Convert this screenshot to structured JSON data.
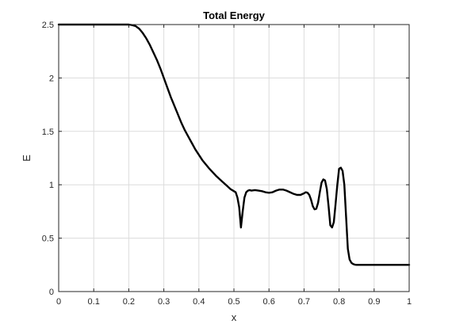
{
  "chart_data": {
    "type": "line",
    "title": "Total Energy",
    "xlabel": "x",
    "ylabel": "E",
    "xlim": [
      0,
      1
    ],
    "ylim": [
      0,
      2.5
    ],
    "xticks": [
      0,
      0.1,
      0.2,
      0.3,
      0.4,
      0.5,
      0.6,
      0.7,
      0.8,
      0.9,
      1
    ],
    "xtick_labels": [
      "0",
      "0.1",
      "0.2",
      "0.3",
      "0.4",
      "0.5",
      "0.6",
      "0.7",
      "0.8",
      "0.9",
      "1"
    ],
    "yticks": [
      0,
      0.5,
      1,
      1.5,
      2,
      2.5
    ],
    "ytick_labels": [
      "0",
      "0.5",
      "1",
      "1.5",
      "2",
      "2.5"
    ],
    "grid": true,
    "line_color": "#000000",
    "series": [
      {
        "x": [
          0,
          0.05,
          0.1,
          0.15,
          0.2,
          0.21,
          0.22,
          0.23,
          0.24,
          0.25,
          0.26,
          0.27,
          0.28,
          0.29,
          0.3,
          0.31,
          0.32,
          0.33,
          0.34,
          0.35,
          0.36,
          0.37,
          0.38,
          0.39,
          0.4,
          0.41,
          0.42,
          0.43,
          0.44,
          0.45,
          0.46,
          0.47,
          0.48,
          0.49,
          0.5,
          0.505,
          0.51,
          0.515,
          0.52,
          0.525,
          0.53,
          0.535,
          0.54,
          0.545,
          0.55,
          0.56,
          0.57,
          0.58,
          0.59,
          0.6,
          0.61,
          0.62,
          0.63,
          0.64,
          0.65,
          0.66,
          0.67,
          0.68,
          0.69,
          0.7,
          0.705,
          0.71,
          0.715,
          0.72,
          0.725,
          0.73,
          0.735,
          0.74,
          0.745,
          0.75,
          0.755,
          0.76,
          0.765,
          0.77,
          0.775,
          0.78,
          0.785,
          0.79,
          0.795,
          0.8,
          0.805,
          0.81,
          0.815,
          0.82,
          0.825,
          0.83,
          0.835,
          0.84,
          0.845,
          0.85,
          0.855,
          0.86,
          0.865,
          0.87,
          0.875,
          0.88,
          0.89,
          0.9,
          0.95,
          1
        ],
        "y": [
          2.5,
          2.5,
          2.5,
          2.5,
          2.5,
          2.495,
          2.485,
          2.46,
          2.42,
          2.37,
          2.31,
          2.24,
          2.17,
          2.09,
          2.0,
          1.91,
          1.82,
          1.74,
          1.66,
          1.58,
          1.51,
          1.45,
          1.39,
          1.33,
          1.28,
          1.23,
          1.19,
          1.15,
          1.115,
          1.08,
          1.05,
          1.02,
          0.99,
          0.96,
          0.94,
          0.93,
          0.88,
          0.79,
          0.6,
          0.75,
          0.88,
          0.93,
          0.945,
          0.95,
          0.945,
          0.95,
          0.945,
          0.94,
          0.93,
          0.925,
          0.93,
          0.945,
          0.955,
          0.955,
          0.945,
          0.93,
          0.915,
          0.905,
          0.905,
          0.92,
          0.93,
          0.925,
          0.905,
          0.86,
          0.8,
          0.77,
          0.775,
          0.83,
          0.93,
          1.02,
          1.05,
          1.04,
          0.96,
          0.8,
          0.62,
          0.6,
          0.65,
          0.82,
          1.0,
          1.15,
          1.16,
          1.13,
          1.0,
          0.7,
          0.4,
          0.3,
          0.27,
          0.258,
          0.252,
          0.25,
          0.25,
          0.25,
          0.25,
          0.25,
          0.25,
          0.25,
          0.25,
          0.25,
          0.25,
          0.25
        ]
      }
    ]
  }
}
